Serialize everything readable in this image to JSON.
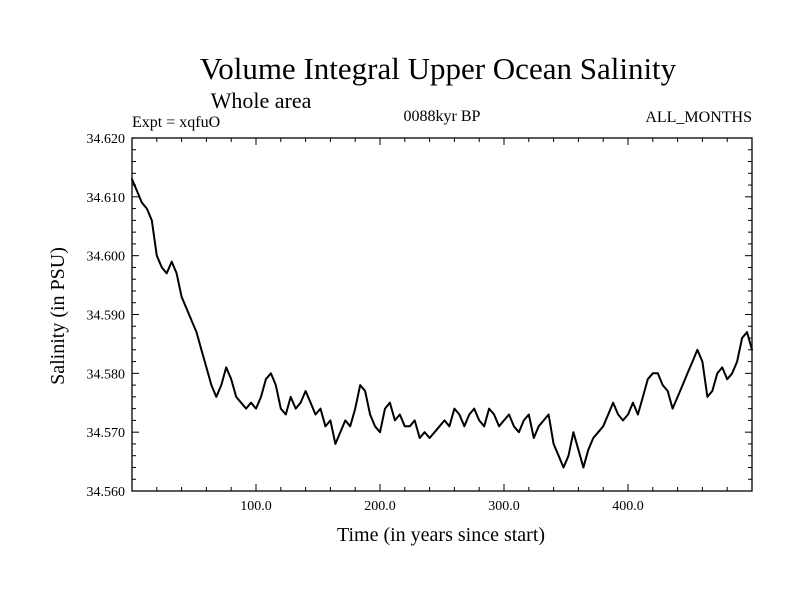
{
  "chart_data": {
    "type": "line",
    "title": "Volume Integral Upper Ocean Salinity",
    "subtitle": "Whole area",
    "header_left": "Expt = xqfuO",
    "header_center": "0088kyr BP",
    "header_right": "ALL_MONTHS",
    "xlabel": "Time (in years since start)",
    "ylabel": "Salinity (in PSU)",
    "xlim": [
      0,
      500
    ],
    "ylim": [
      34.56,
      34.62
    ],
    "x_ticks": [
      100,
      200,
      300,
      400
    ],
    "x_tick_labels": [
      "100.0",
      "200.0",
      "300.0",
      "400.0"
    ],
    "y_ticks": [
      34.56,
      34.57,
      34.58,
      34.59,
      34.6,
      34.61,
      34.62
    ],
    "y_tick_labels": [
      "34.560",
      "34.570",
      "34.580",
      "34.590",
      "34.600",
      "34.610",
      "34.620"
    ],
    "grid": false,
    "series": [
      {
        "name": "Salinity",
        "color": "#000000",
        "x": [
          0,
          4,
          8,
          12,
          16,
          20,
          24,
          28,
          32,
          36,
          40,
          44,
          48,
          52,
          56,
          60,
          64,
          68,
          72,
          76,
          80,
          84,
          88,
          92,
          96,
          100,
          104,
          108,
          112,
          116,
          120,
          124,
          128,
          132,
          136,
          140,
          144,
          148,
          152,
          156,
          160,
          164,
          168,
          172,
          176,
          180,
          184,
          188,
          192,
          196,
          200,
          204,
          208,
          212,
          216,
          220,
          224,
          228,
          232,
          236,
          240,
          244,
          248,
          252,
          256,
          260,
          264,
          268,
          272,
          276,
          280,
          284,
          288,
          292,
          296,
          300,
          304,
          308,
          312,
          316,
          320,
          324,
          328,
          332,
          336,
          340,
          344,
          348,
          352,
          356,
          360,
          364,
          368,
          372,
          376,
          380,
          384,
          388,
          392,
          396,
          400,
          404,
          408,
          412,
          416,
          420,
          424,
          428,
          432,
          436,
          440,
          444,
          448,
          452,
          456,
          460,
          464,
          468,
          472,
          476,
          480,
          484,
          488,
          492,
          496,
          500
        ],
        "values": [
          34.613,
          34.611,
          34.609,
          34.608,
          34.606,
          34.6,
          34.598,
          34.597,
          34.599,
          34.597,
          34.593,
          34.591,
          34.589,
          34.587,
          34.584,
          34.581,
          34.578,
          34.576,
          34.578,
          34.581,
          34.579,
          34.576,
          34.575,
          34.574,
          34.575,
          34.574,
          34.576,
          34.579,
          34.58,
          34.578,
          34.574,
          34.573,
          34.576,
          34.574,
          34.575,
          34.577,
          34.575,
          34.573,
          34.574,
          34.571,
          34.572,
          34.568,
          34.57,
          34.572,
          34.571,
          34.574,
          34.578,
          34.577,
          34.573,
          34.571,
          34.57,
          34.574,
          34.575,
          34.572,
          34.573,
          34.571,
          34.571,
          34.572,
          34.569,
          34.57,
          34.569,
          34.57,
          34.571,
          34.572,
          34.571,
          34.574,
          34.573,
          34.571,
          34.573,
          34.574,
          34.572,
          34.571,
          34.574,
          34.573,
          34.571,
          34.572,
          34.573,
          34.571,
          34.57,
          34.572,
          34.573,
          34.569,
          34.571,
          34.572,
          34.573,
          34.568,
          34.566,
          34.564,
          34.566,
          34.57,
          34.567,
          34.564,
          34.567,
          34.569,
          34.57,
          34.571,
          34.573,
          34.575,
          34.573,
          34.572,
          34.573,
          34.575,
          34.573,
          34.576,
          34.579,
          34.58,
          34.58,
          34.578,
          34.577,
          34.574,
          34.576,
          34.578,
          34.58,
          34.582,
          34.584,
          34.582,
          34.576,
          34.577,
          34.58,
          34.581,
          34.579,
          34.58,
          34.582,
          34.586,
          34.587,
          34.584
        ]
      }
    ]
  }
}
